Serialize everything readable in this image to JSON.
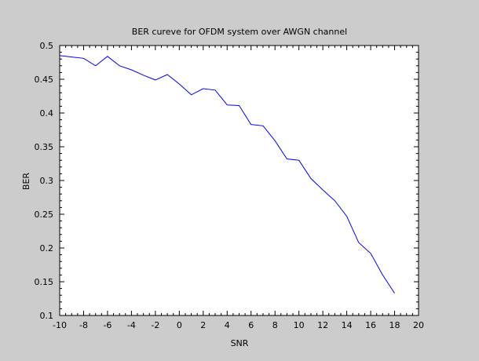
{
  "chart_data": {
    "type": "line",
    "title": "BER cureve for OFDM system over AWGN channel",
    "xlabel": "SNR",
    "ylabel": "BER",
    "xlim": [
      -10,
      20
    ],
    "ylim": [
      0.1,
      0.5
    ],
    "x_ticks": [
      "-10",
      "-8",
      "-6",
      "-4",
      "-2",
      "0",
      "2",
      "4",
      "6",
      "8",
      "10",
      "12",
      "14",
      "16",
      "18",
      "20"
    ],
    "y_ticks": [
      "0.1",
      "0.15",
      "0.2",
      "0.25",
      "0.3",
      "0.35",
      "0.4",
      "0.45",
      "0.5"
    ],
    "grid": false,
    "series": [
      {
        "color": "#0000ff",
        "x": [
          -10,
          -9,
          -8,
          -7,
          -6,
          -5,
          -4,
          -3,
          -2,
          -1,
          0,
          1,
          2,
          3,
          4,
          5,
          6,
          7,
          8,
          9,
          10,
          11,
          12,
          13,
          14,
          15,
          16,
          17,
          18
        ],
        "y": [
          0.485,
          0.483,
          0.481,
          0.47,
          0.484,
          0.47,
          0.464,
          0.456,
          0.449,
          0.457,
          0.443,
          0.427,
          0.436,
          0.434,
          0.412,
          0.411,
          0.383,
          0.381,
          0.359,
          0.332,
          0.33,
          0.303,
          0.286,
          0.27,
          0.247,
          0.208,
          0.192,
          0.16,
          0.133
        ]
      }
    ]
  },
  "colors": {
    "background": "#cccccc",
    "plot_area": "#ffffff",
    "line": "#0000ff",
    "axis": "#000000"
  }
}
